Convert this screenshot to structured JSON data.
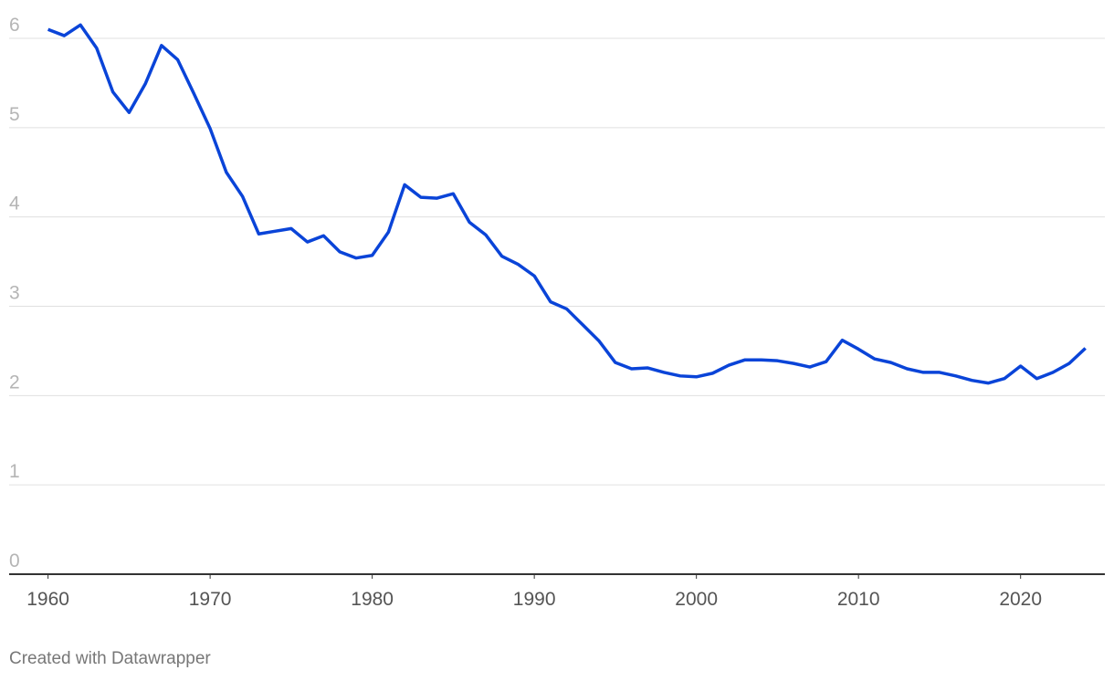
{
  "chart_data": {
    "type": "line",
    "x": [
      1960,
      1961,
      1962,
      1963,
      1964,
      1965,
      1966,
      1967,
      1968,
      1969,
      1970,
      1971,
      1972,
      1973,
      1974,
      1975,
      1976,
      1977,
      1978,
      1979,
      1980,
      1981,
      1982,
      1983,
      1984,
      1985,
      1986,
      1987,
      1988,
      1989,
      1990,
      1991,
      1992,
      1993,
      1994,
      1995,
      1996,
      1997,
      1998,
      1999,
      2000,
      2001,
      2002,
      2003,
      2004,
      2005,
      2006,
      2007,
      2008,
      2009,
      2010,
      2011,
      2012,
      2013,
      2014,
      2015,
      2016,
      2017,
      2018,
      2019,
      2020,
      2021,
      2022,
      2023,
      2024
    ],
    "series": [
      {
        "color": "#0a44d8",
        "values": [
          6.1,
          6.03,
          6.15,
          5.89,
          5.4,
          5.17,
          5.49,
          5.92,
          5.76,
          5.38,
          4.99,
          4.5,
          4.23,
          3.81,
          3.84,
          3.87,
          3.72,
          3.79,
          3.61,
          3.54,
          3.57,
          3.83,
          4.36,
          4.22,
          4.21,
          4.26,
          3.94,
          3.8,
          3.56,
          3.47,
          3.34,
          3.05,
          2.97,
          2.79,
          2.61,
          2.37,
          2.3,
          2.31,
          2.26,
          2.22,
          2.21,
          2.25,
          2.34,
          2.4,
          2.4,
          2.39,
          2.36,
          2.32,
          2.38,
          2.62,
          2.52,
          2.41,
          2.37,
          2.3,
          2.26,
          2.26,
          2.22,
          2.17,
          2.14,
          2.19,
          2.33,
          2.19,
          2.26,
          2.36,
          2.53
        ]
      }
    ],
    "xlim": [
      1957.6,
      2025.2
    ],
    "xticks": [
      1960,
      1970,
      1980,
      1990,
      2000,
      2010,
      2020
    ],
    "ylim": [
      0,
      6
    ],
    "yticks": [
      0,
      1,
      2,
      3,
      4,
      5,
      6
    ],
    "grid": true,
    "credit": "Created with Datawrapper"
  }
}
